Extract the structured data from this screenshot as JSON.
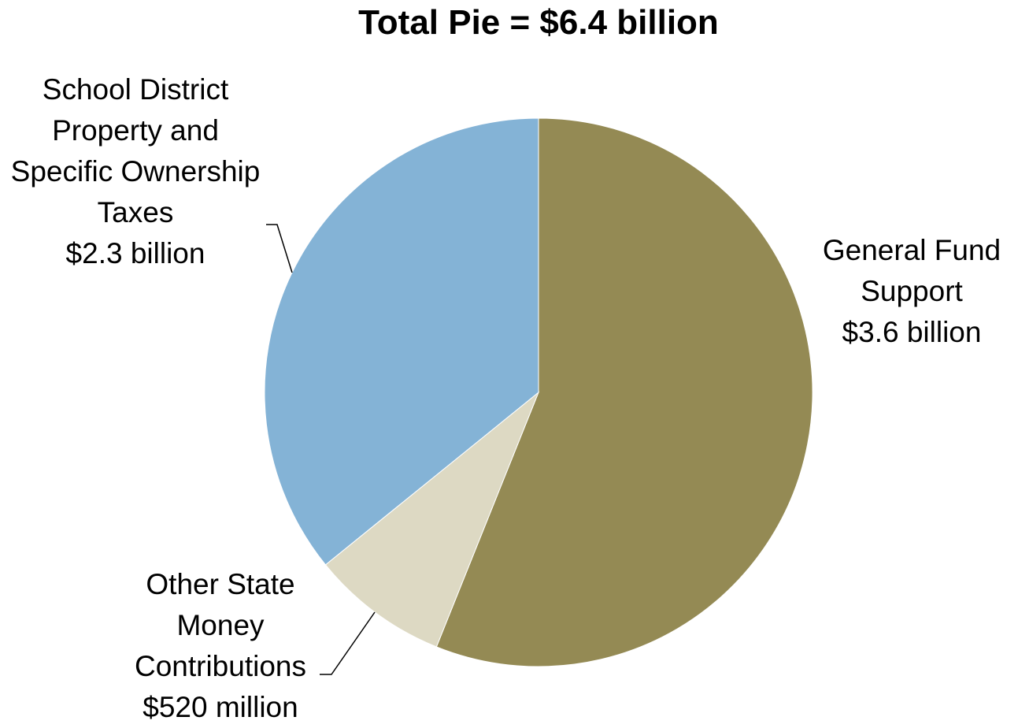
{
  "chart_data": {
    "type": "pie",
    "title": "Total Pie = $6.4 billion",
    "categories": [
      "General Fund Support",
      "Other State Money Contributions",
      "School District Property and Specific Ownership Taxes"
    ],
    "values": [
      3.6,
      0.52,
      2.3
    ],
    "value_labels": [
      "$3.6 billion",
      "$520 million",
      "$2.3 billion"
    ],
    "colors": [
      "#948a54",
      "#ddd9c3",
      "#84b3d6"
    ]
  }
}
